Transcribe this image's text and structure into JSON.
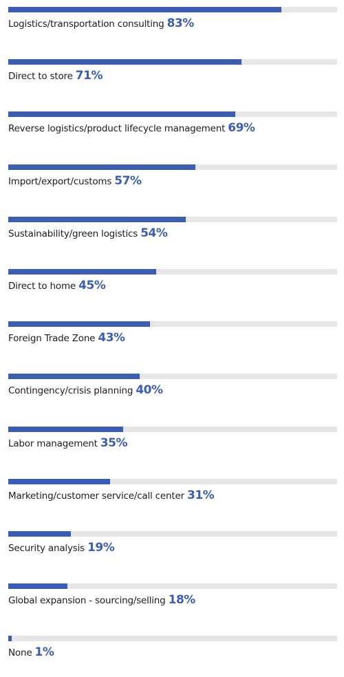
{
  "chart_data": {
    "type": "bar",
    "orientation": "horizontal",
    "value_unit": "%",
    "xlim": [
      0,
      100
    ],
    "categories": [
      "Logistics/transportation consulting",
      "Direct to store",
      "Reverse logistics/product lifecycle management",
      "Import/export/customs",
      "Sustainability/green logistics",
      "Direct to home",
      "Foreign Trade Zone",
      "Contingency/crisis planning",
      "Labor management",
      "Marketing/customer service/call center",
      "Security analysis",
      "Global expansion - sourcing/selling",
      "None"
    ],
    "values": [
      83,
      71,
      69,
      57,
      54,
      45,
      43,
      40,
      35,
      31,
      19,
      18,
      1
    ],
    "value_labels": [
      "83%",
      "71%",
      "69%",
      "57%",
      "54%",
      "45%",
      "43%",
      "40%",
      "35%",
      "31%",
      "19%",
      "18%",
      "1%"
    ],
    "colors": {
      "bar": "#3b5db4",
      "track": "#e6e6e6",
      "value_label": "#3b5db4",
      "category_label": "#1c1c1c"
    }
  }
}
